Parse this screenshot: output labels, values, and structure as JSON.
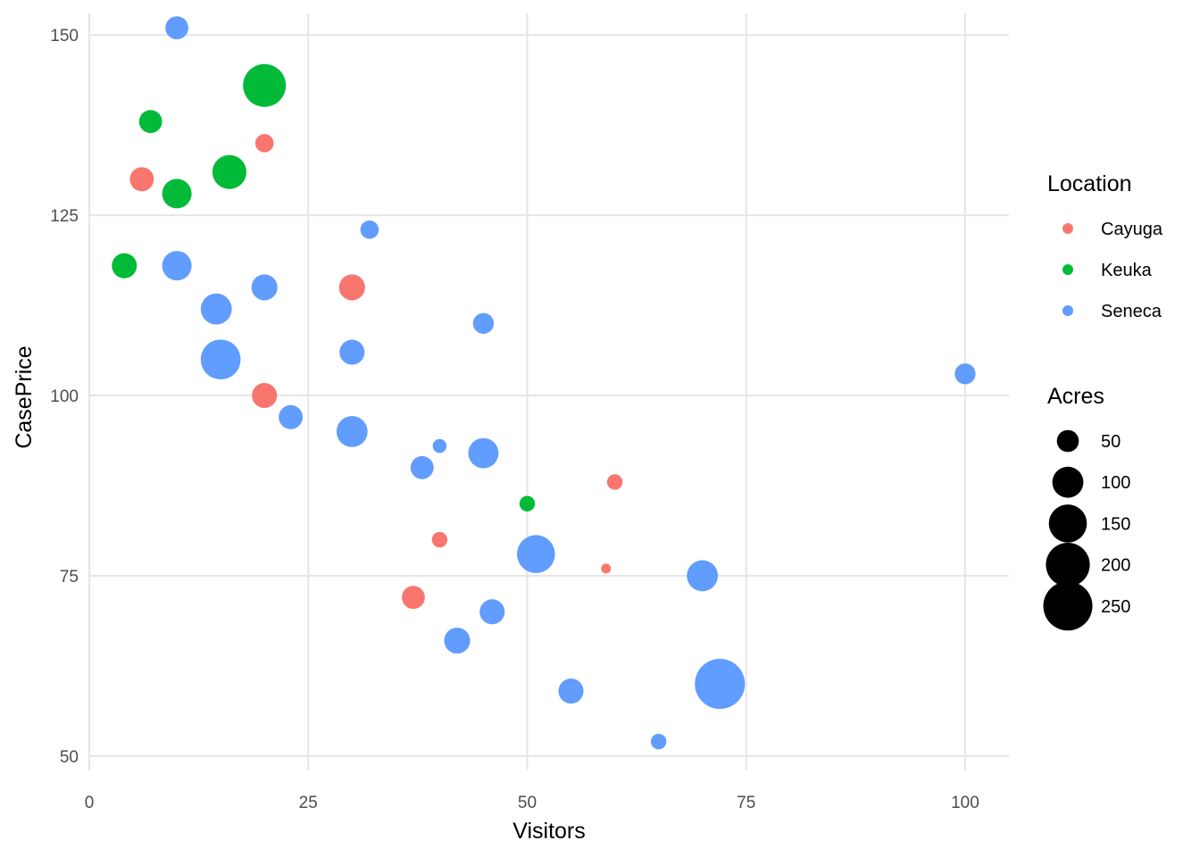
{
  "chart_data": {
    "type": "scatter",
    "xlabel": "Visitors",
    "ylabel": "CasePrice",
    "xlim": [
      0,
      105
    ],
    "ylim": [
      48,
      153
    ],
    "x_ticks": [
      0,
      25,
      50,
      75,
      100
    ],
    "y_ticks": [
      50,
      75,
      100,
      125,
      150
    ],
    "x_tick_labels": [
      "0",
      "25",
      "50",
      "75",
      "100"
    ],
    "y_tick_labels": [
      "50",
      "75",
      "100",
      "125",
      "150"
    ],
    "grid": true,
    "legend_placement": "right",
    "color_legend": {
      "title": "Location",
      "entries": [
        {
          "label": "Cayuga",
          "color": "#F8766D"
        },
        {
          "label": "Keuka",
          "color": "#00BA38"
        },
        {
          "label": "Seneca",
          "color": "#619CFF"
        }
      ]
    },
    "size_legend": {
      "title": "Acres",
      "entries": [
        {
          "label": "50",
          "value": 50
        },
        {
          "label": "100",
          "value": 100
        },
        {
          "label": "150",
          "value": 150
        },
        {
          "label": "200",
          "value": 200
        },
        {
          "label": "250",
          "value": 250
        }
      ]
    },
    "series": [
      {
        "name": "Cayuga",
        "points": [
          {
            "x": 6,
            "y": 130,
            "acres": 60
          },
          {
            "x": 20,
            "y": 135,
            "acres": 35
          },
          {
            "x": 30,
            "y": 115,
            "acres": 70
          },
          {
            "x": 20,
            "y": 100,
            "acres": 65
          },
          {
            "x": 40,
            "y": 80,
            "acres": 25
          },
          {
            "x": 37,
            "y": 72,
            "acres": 55
          },
          {
            "x": 60,
            "y": 88,
            "acres": 25
          },
          {
            "x": 59,
            "y": 76,
            "acres": 10
          }
        ]
      },
      {
        "name": "Keuka",
        "points": [
          {
            "x": 7,
            "y": 138,
            "acres": 55
          },
          {
            "x": 20,
            "y": 143,
            "acres": 190
          },
          {
            "x": 16,
            "y": 131,
            "acres": 120
          },
          {
            "x": 10,
            "y": 128,
            "acres": 90
          },
          {
            "x": 4,
            "y": 118,
            "acres": 65
          },
          {
            "x": 50,
            "y": 85,
            "acres": 25
          }
        ]
      },
      {
        "name": "Seneca",
        "points": [
          {
            "x": 10,
            "y": 151,
            "acres": 55
          },
          {
            "x": 32,
            "y": 123,
            "acres": 35
          },
          {
            "x": 10,
            "y": 118,
            "acres": 90
          },
          {
            "x": 20,
            "y": 115,
            "acres": 70
          },
          {
            "x": 14.5,
            "y": 112,
            "acres": 100
          },
          {
            "x": 45,
            "y": 110,
            "acres": 45
          },
          {
            "x": 15,
            "y": 105,
            "acres": 165
          },
          {
            "x": 30,
            "y": 106,
            "acres": 65
          },
          {
            "x": 100,
            "y": 103,
            "acres": 45
          },
          {
            "x": 23,
            "y": 97,
            "acres": 60
          },
          {
            "x": 30,
            "y": 95,
            "acres": 100
          },
          {
            "x": 40,
            "y": 93,
            "acres": 20
          },
          {
            "x": 38,
            "y": 90,
            "acres": 55
          },
          {
            "x": 45,
            "y": 92,
            "acres": 95
          },
          {
            "x": 51,
            "y": 78,
            "acres": 150
          },
          {
            "x": 70,
            "y": 75,
            "acres": 100
          },
          {
            "x": 46,
            "y": 70,
            "acres": 65
          },
          {
            "x": 42,
            "y": 66,
            "acres": 70
          },
          {
            "x": 72,
            "y": 60,
            "acres": 260
          },
          {
            "x": 55,
            "y": 59,
            "acres": 65
          },
          {
            "x": 65,
            "y": 52,
            "acres": 25
          }
        ]
      }
    ]
  }
}
